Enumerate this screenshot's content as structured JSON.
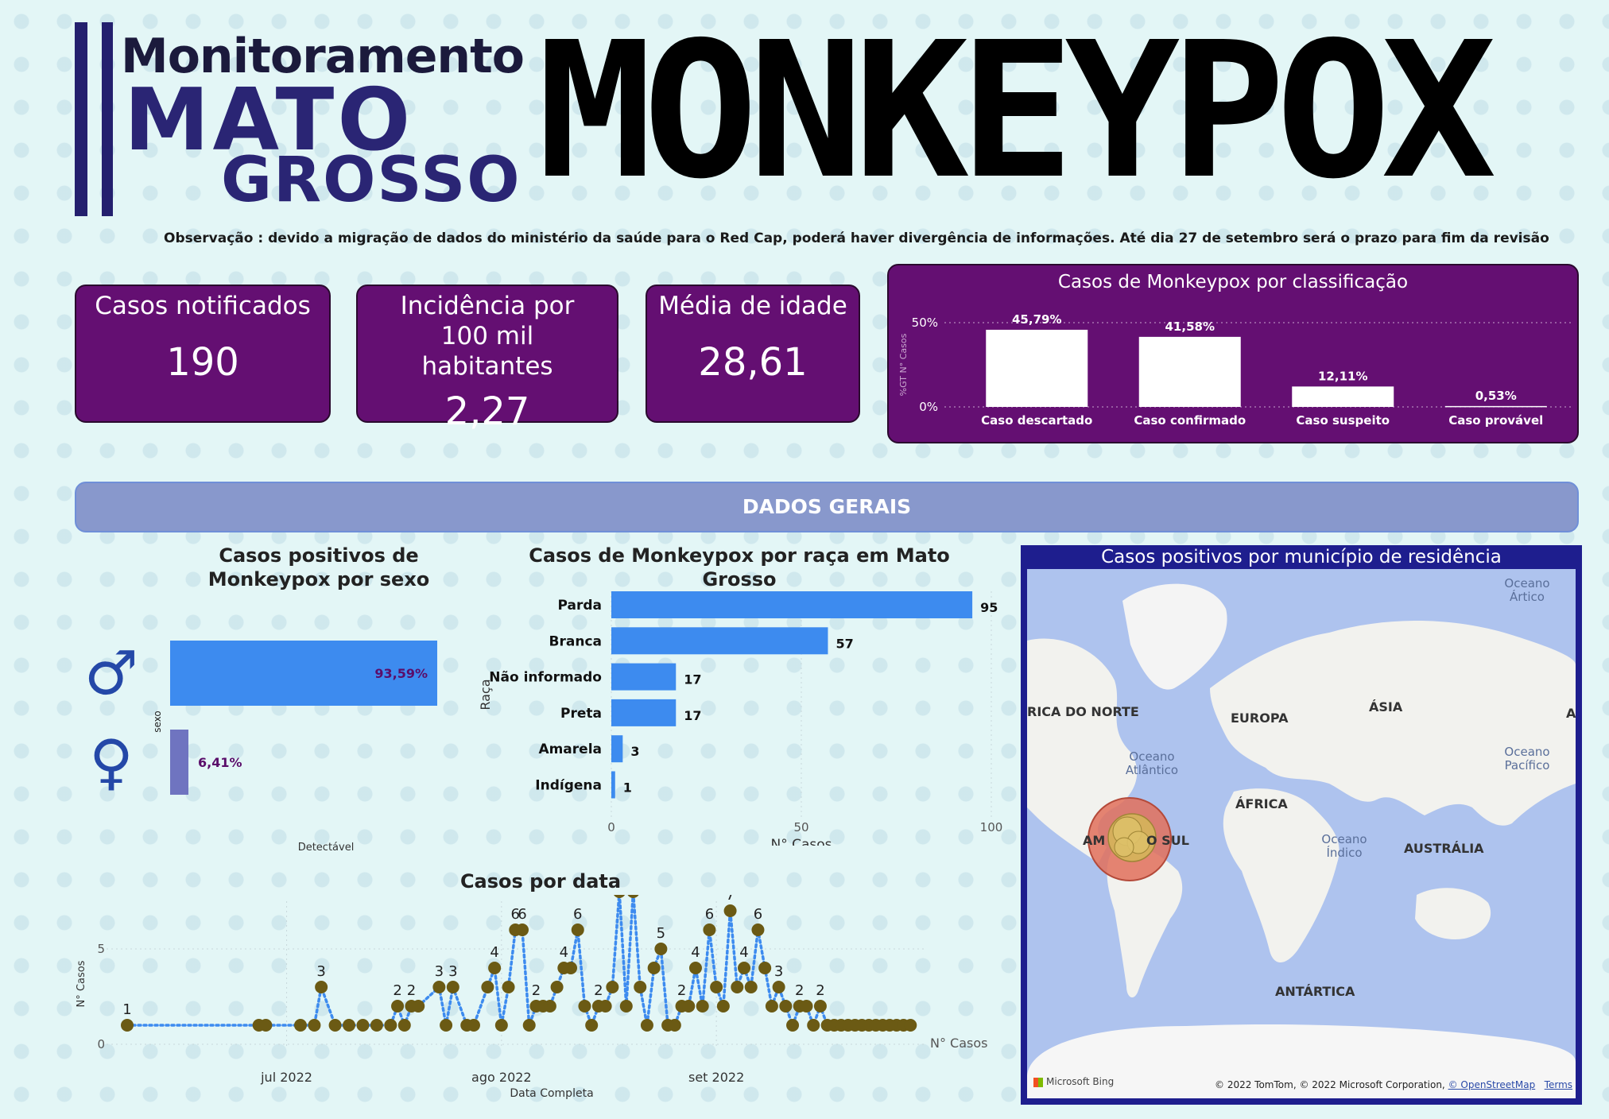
{
  "header": {
    "logo_line1": "Monitoramento",
    "logo_line2": "MATO",
    "logo_line3": "GROSSO",
    "title": "MONKEYPOX",
    "note": "Observação : devido a migração de dados do ministério da saúde para o Red Cap, poderá haver divergência de informações. Até dia  27 de setembro será o prazo para fim da revisão"
  },
  "kpis": {
    "cases_title": "Casos notificados",
    "cases_value": "190",
    "incidence_title": "Incidência por 100 mil habitantes",
    "incidence_value": "2,27",
    "age_title": "Média de idade",
    "age_value": "28,61"
  },
  "colors": {
    "card": "#640f72",
    "bar_blue": "#3d8bef",
    "bar_female": "#6f74c0",
    "dot": "#6b5a14",
    "banner": "#8898cc"
  },
  "banner": {
    "label": "DADOS GERAIS"
  },
  "map": {
    "title": "Casos positivos por município de residência",
    "labels": [
      "RICA DO NORTE",
      "EUROPA",
      "ÁSIA",
      "ÁFRICA",
      "AUSTRÁLIA",
      "ANTÁRTICA",
      "AM",
      "O SUL",
      "A"
    ],
    "oceans": [
      "Oceano Ártico",
      "Oceano Atlântico",
      "Oceano Pacífico",
      "Oceano Índico"
    ],
    "bing": "Microsoft Bing",
    "credit": "© 2022 TomTom, © 2022 Microsoft Corporation, ",
    "credit_link1": "© OpenStreetMap",
    "credit_link2": "Terms"
  },
  "chart_data": [
    {
      "type": "bar",
      "title": "Casos de Monkeypox por classificação",
      "ylabel": "%GT N° Casos",
      "categories": [
        "Caso descartado",
        "Caso confirmado",
        "Caso suspeito",
        "Caso provável"
      ],
      "values": [
        45.79,
        41.58,
        12.11,
        0.53
      ],
      "labels": [
        "45,79%",
        "41,58%",
        "12,11%",
        "0,53%"
      ],
      "yticks": [
        "0%",
        "50%"
      ],
      "ylim": [
        0,
        50
      ]
    },
    {
      "type": "bar",
      "title": "Casos positivos de Monkeypox por sexo",
      "ylabel": "sexo",
      "xlabel": "Detectável",
      "categories": [
        "♂",
        "♀"
      ],
      "values": [
        93.59,
        6.41
      ],
      "labels": [
        "93,59%",
        "6,41%"
      ],
      "xlim": [
        0,
        93.59
      ]
    },
    {
      "type": "bar",
      "title": "Casos de Monkeypox por raça em Mato Grosso",
      "xlabel": "N° Casos",
      "ylabel": "Raça",
      "categories": [
        "Parda",
        "Branca",
        "Não informado",
        "Preta",
        "Amarela",
        "Indígena"
      ],
      "values": [
        95,
        57,
        17,
        17,
        3,
        1
      ],
      "xticks": [
        "0",
        "50",
        "100"
      ],
      "xlim": [
        0,
        100
      ]
    },
    {
      "type": "line",
      "title": "Casos por data",
      "xlabel": "Data Completa",
      "ylabel": "N° Casos",
      "legend": "N° Casos",
      "xticks": [
        "jul 2022",
        "ago 2022",
        "set 2022"
      ],
      "yticks": [
        "0",
        "5"
      ],
      "ylim": [
        0,
        8
      ],
      "x_range": [
        "2022-06-08",
        "2022-09-30"
      ],
      "x": [
        "2022-06-08",
        "2022-06-27",
        "2022-06-28",
        "2022-07-03",
        "2022-07-05",
        "2022-07-06",
        "2022-07-08",
        "2022-07-10",
        "2022-07-12",
        "2022-07-14",
        "2022-07-16",
        "2022-07-17",
        "2022-07-18",
        "2022-07-19",
        "2022-07-20",
        "2022-07-23",
        "2022-07-24",
        "2022-07-25",
        "2022-07-27",
        "2022-07-28",
        "2022-07-30",
        "2022-07-31",
        "2022-08-01",
        "2022-08-02",
        "2022-08-03",
        "2022-08-04",
        "2022-08-05",
        "2022-08-06",
        "2022-08-07",
        "2022-08-08",
        "2022-08-09",
        "2022-08-10",
        "2022-08-11",
        "2022-08-12",
        "2022-08-13",
        "2022-08-14",
        "2022-08-15",
        "2022-08-16",
        "2022-08-17",
        "2022-08-18",
        "2022-08-19",
        "2022-08-20",
        "2022-08-21",
        "2022-08-22",
        "2022-08-23",
        "2022-08-24",
        "2022-08-25",
        "2022-08-26",
        "2022-08-27",
        "2022-08-28",
        "2022-08-29",
        "2022-08-30",
        "2022-08-31",
        "2022-09-01",
        "2022-09-02",
        "2022-09-03",
        "2022-09-04",
        "2022-09-05",
        "2022-09-06",
        "2022-09-07",
        "2022-09-08",
        "2022-09-09",
        "2022-09-10",
        "2022-09-11",
        "2022-09-12",
        "2022-09-13",
        "2022-09-14",
        "2022-09-15",
        "2022-09-16",
        "2022-09-17",
        "2022-09-18",
        "2022-09-19",
        "2022-09-20",
        "2022-09-21",
        "2022-09-22",
        "2022-09-23",
        "2022-09-24",
        "2022-09-25",
        "2022-09-26",
        "2022-09-27",
        "2022-09-28",
        "2022-09-29"
      ],
      "values": [
        1,
        1,
        1,
        1,
        1,
        3,
        1,
        1,
        1,
        1,
        1,
        2,
        1,
        2,
        2,
        3,
        1,
        3,
        1,
        1,
        3,
        4,
        1,
        3,
        6,
        6,
        1,
        2,
        2,
        2,
        3,
        4,
        4,
        6,
        2,
        1,
        2,
        2,
        3,
        8,
        2,
        8,
        3,
        1,
        4,
        5,
        1,
        1,
        2,
        2,
        4,
        2,
        6,
        3,
        2,
        7,
        3,
        4,
        3,
        6,
        4,
        2,
        3,
        2,
        1,
        2,
        2,
        1,
        2,
        1,
        1,
        1,
        1,
        1,
        1,
        1,
        1,
        1,
        1,
        1,
        1,
        1
      ]
    }
  ]
}
